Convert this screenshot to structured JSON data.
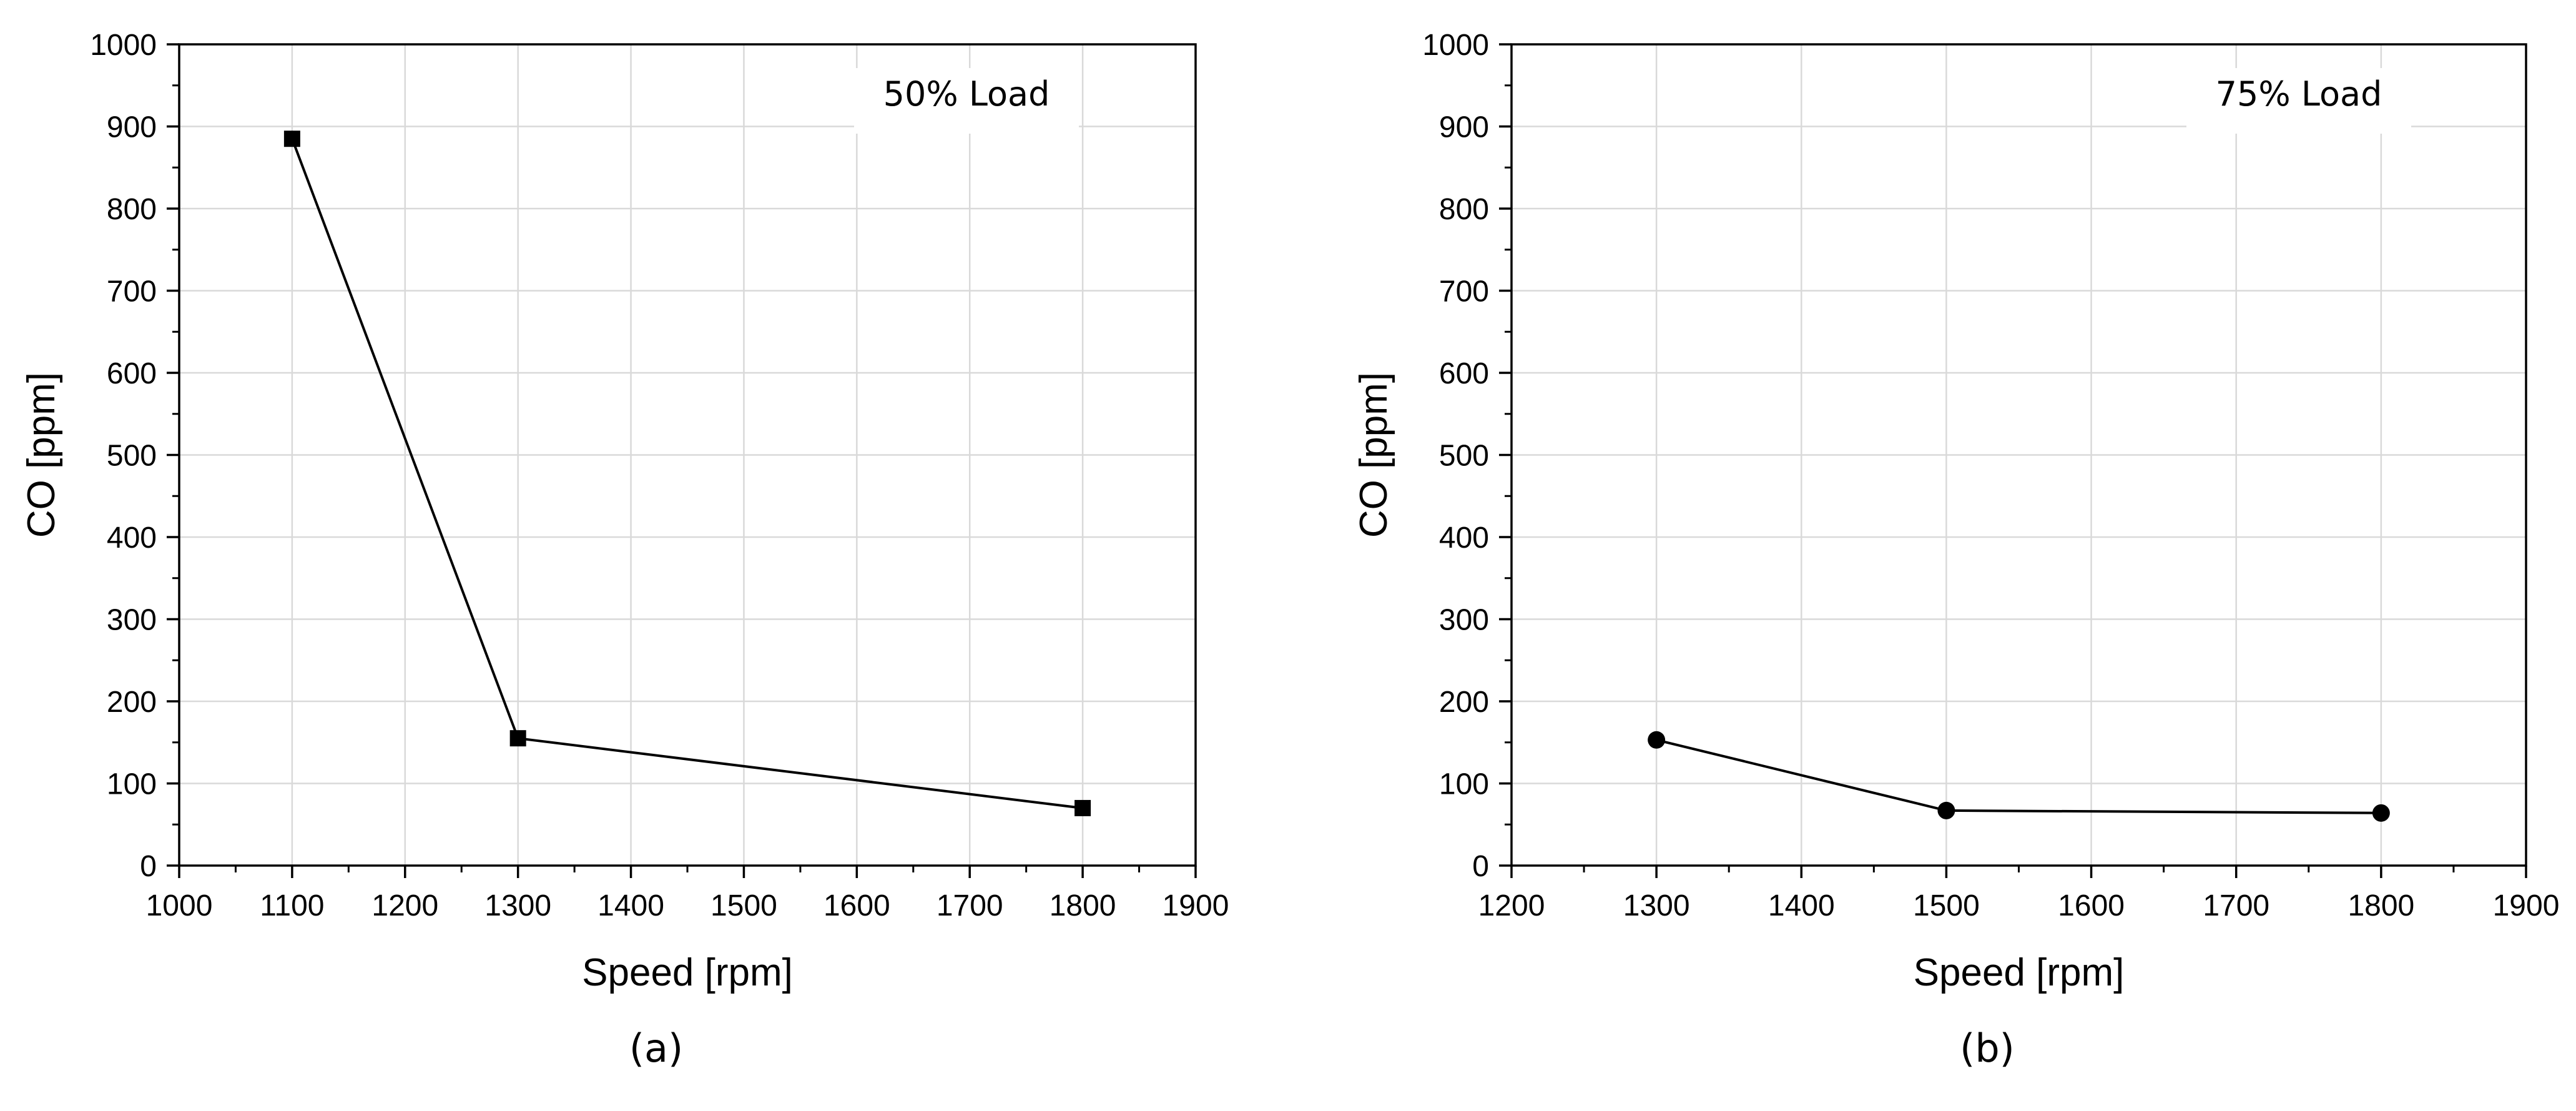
{
  "chart_data": [
    {
      "type": "line",
      "panel_label": "(a)",
      "legend_text": "50% Load",
      "xlabel": "Speed [rpm]",
      "ylabel": "CO [ppm]",
      "xlim": [
        1000,
        1900
      ],
      "ylim": [
        0,
        1000
      ],
      "xticks": [
        1000,
        1100,
        1200,
        1300,
        1400,
        1500,
        1600,
        1700,
        1800,
        1900
      ],
      "yticks": [
        0,
        100,
        200,
        300,
        400,
        500,
        600,
        700,
        800,
        900,
        1000
      ],
      "grid": true,
      "legend_position": "top-right",
      "marker": "square",
      "series": [
        {
          "x": [
            1100,
            1300,
            1800
          ],
          "y": [
            885,
            155,
            70
          ]
        }
      ]
    },
    {
      "type": "line",
      "panel_label": "(b)",
      "legend_text": "75% Load",
      "xlabel": "Speed [rpm]",
      "ylabel": "CO [ppm]",
      "xlim": [
        1200,
        1900
      ],
      "ylim": [
        0,
        1000
      ],
      "xticks": [
        1200,
        1300,
        1400,
        1500,
        1600,
        1700,
        1800,
        1900
      ],
      "yticks": [
        0,
        100,
        200,
        300,
        400,
        500,
        600,
        700,
        800,
        900,
        1000
      ],
      "grid": true,
      "legend_position": "top-right",
      "marker": "circle",
      "series": [
        {
          "x": [
            1300,
            1500,
            1800
          ],
          "y": [
            153,
            67,
            64
          ]
        }
      ]
    }
  ]
}
